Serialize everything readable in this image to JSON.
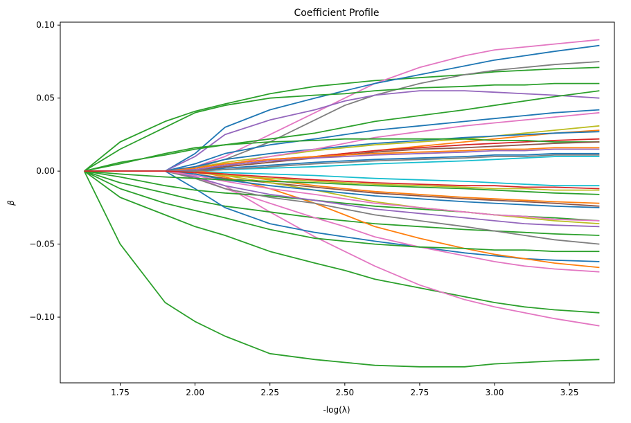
{
  "chart_data": {
    "type": "line",
    "title": "Coefficient Profile",
    "xlabel": "-log(λ)",
    "ylabel": "β",
    "xlim": [
      1.55,
      3.4
    ],
    "ylim": [
      -0.145,
      0.102
    ],
    "xticks": [
      1.75,
      2.0,
      2.25,
      2.5,
      2.75,
      3.0,
      3.25
    ],
    "xtick_labels": [
      "1.75",
      "2.00",
      "2.25",
      "2.50",
      "2.75",
      "3.00",
      "3.25"
    ],
    "yticks": [
      0.1,
      0.05,
      0.0,
      -0.05,
      -0.1
    ],
    "ytick_labels": [
      "0.10",
      "0.05",
      "0.00",
      "−0.05",
      "−0.10"
    ],
    "grid": false,
    "legend": "none",
    "x": [
      1.63,
      1.75,
      1.9,
      2.0,
      2.1,
      2.25,
      2.4,
      2.5,
      2.6,
      2.75,
      2.9,
      3.0,
      3.1,
      3.2,
      3.35
    ],
    "series": [
      {
        "color": "#2ca02c",
        "values": [
          0,
          -0.05,
          -0.09,
          -0.103,
          -0.113,
          -0.125,
          -0.129,
          -0.131,
          -0.133,
          -0.134,
          -0.134,
          -0.132,
          -0.131,
          -0.13,
          -0.129
        ]
      },
      {
        "color": "#2ca02c",
        "values": [
          0,
          -0.018,
          -0.03,
          -0.038,
          -0.044,
          -0.055,
          -0.063,
          -0.068,
          -0.074,
          -0.08,
          -0.086,
          -0.09,
          -0.093,
          -0.095,
          -0.097
        ]
      },
      {
        "color": "#e377c2",
        "values": [
          0,
          0,
          0,
          -0.004,
          -0.01,
          -0.028,
          -0.045,
          -0.055,
          -0.065,
          -0.078,
          -0.088,
          -0.093,
          -0.097,
          -0.101,
          -0.106
        ]
      },
      {
        "color": "#2ca02c",
        "values": [
          0,
          0.02,
          0.034,
          0.041,
          0.046,
          0.053,
          0.058,
          0.06,
          0.062,
          0.064,
          0.066,
          0.068,
          0.069,
          0.07,
          0.071
        ]
      },
      {
        "color": "#e377c2",
        "values": [
          0,
          0,
          0,
          0.003,
          0.01,
          0.025,
          0.04,
          0.05,
          0.06,
          0.071,
          0.079,
          0.083,
          0.085,
          0.087,
          0.09
        ]
      },
      {
        "color": "#1f77b4",
        "values": [
          0,
          0,
          0,
          0.012,
          0.03,
          0.042,
          0.05,
          0.055,
          0.06,
          0.066,
          0.072,
          0.076,
          0.079,
          0.082,
          0.086
        ]
      },
      {
        "color": "#7f7f7f",
        "values": [
          0,
          0,
          0,
          0.002,
          0.008,
          0.02,
          0.035,
          0.045,
          0.052,
          0.06,
          0.066,
          0.069,
          0.071,
          0.073,
          0.075
        ]
      },
      {
        "color": "#2ca02c",
        "values": [
          0,
          0.015,
          0.03,
          0.04,
          0.045,
          0.05,
          0.052,
          0.053,
          0.055,
          0.057,
          0.058,
          0.059,
          0.059,
          0.06,
          0.06
        ]
      },
      {
        "color": "#9467bd",
        "values": [
          0,
          0,
          0,
          0.01,
          0.025,
          0.035,
          0.042,
          0.048,
          0.052,
          0.055,
          0.055,
          0.054,
          0.053,
          0.052,
          0.05
        ]
      },
      {
        "color": "#2ca02c",
        "values": [
          0,
          0.005,
          0.012,
          0.016,
          0.018,
          0.022,
          0.026,
          0.03,
          0.034,
          0.038,
          0.042,
          0.045,
          0.048,
          0.051,
          0.055
        ]
      },
      {
        "color": "#1f77b4",
        "values": [
          0,
          0,
          0,
          0.005,
          0.012,
          0.018,
          0.022,
          0.025,
          0.028,
          0.031,
          0.034,
          0.036,
          0.038,
          0.04,
          0.042
        ]
      },
      {
        "color": "#ff7f0e",
        "values": [
          0,
          0,
          0,
          0,
          0.003,
          0.006,
          0.01,
          0.012,
          0.014,
          0.017,
          0.02,
          0.022,
          0.024,
          0.026,
          0.028
        ]
      },
      {
        "color": "#bcbd22",
        "values": [
          0,
          0,
          0,
          0.002,
          0.006,
          0.01,
          0.014,
          0.016,
          0.018,
          0.02,
          0.022,
          0.024,
          0.026,
          0.028,
          0.031
        ]
      },
      {
        "color": "#17becf",
        "values": [
          0,
          0,
          0,
          0,
          0.001,
          0.002,
          0.003,
          0.004,
          0.005,
          0.006,
          0.007,
          0.008,
          0.009,
          0.01,
          0.01
        ]
      },
      {
        "color": "#17becf",
        "values": [
          0,
          0,
          0,
          0,
          -0.001,
          -0.002,
          -0.003,
          -0.004,
          -0.005,
          -0.006,
          -0.007,
          -0.008,
          -0.009,
          -0.01,
          -0.01
        ]
      },
      {
        "color": "#8c564b",
        "values": [
          0,
          0,
          0,
          -0.002,
          -0.005,
          -0.008,
          -0.011,
          -0.013,
          -0.015,
          -0.017,
          -0.019,
          -0.02,
          -0.021,
          -0.022,
          -0.024
        ]
      },
      {
        "color": "#2ca02c",
        "values": [
          0,
          -0.008,
          -0.015,
          -0.02,
          -0.024,
          -0.028,
          -0.032,
          -0.034,
          -0.036,
          -0.038,
          -0.04,
          -0.041,
          -0.042,
          -0.043,
          -0.044
        ]
      },
      {
        "color": "#1f77b4",
        "values": [
          0,
          0,
          0,
          -0.012,
          -0.025,
          -0.036,
          -0.042,
          -0.045,
          -0.048,
          -0.052,
          -0.056,
          -0.058,
          -0.06,
          -0.061,
          -0.062
        ]
      },
      {
        "color": "#ff7f0e",
        "values": [
          0,
          0,
          0,
          0,
          -0.004,
          -0.012,
          -0.022,
          -0.03,
          -0.038,
          -0.046,
          -0.053,
          -0.057,
          -0.06,
          -0.063,
          -0.066
        ]
      },
      {
        "color": "#e377c2",
        "values": [
          0,
          0,
          0,
          -0.004,
          -0.012,
          -0.022,
          -0.032,
          -0.038,
          -0.045,
          -0.052,
          -0.058,
          -0.062,
          -0.065,
          -0.067,
          -0.069
        ]
      },
      {
        "color": "#2ca02c",
        "values": [
          0,
          -0.012,
          -0.022,
          -0.027,
          -0.032,
          -0.04,
          -0.046,
          -0.048,
          -0.05,
          -0.052,
          -0.053,
          -0.054,
          -0.054,
          -0.055,
          -0.055
        ]
      },
      {
        "color": "#2ca02c",
        "values": [
          0,
          -0.004,
          -0.01,
          -0.013,
          -0.015,
          -0.017,
          -0.02,
          -0.022,
          -0.024,
          -0.026,
          -0.028,
          -0.03,
          -0.031,
          -0.032,
          -0.034
        ]
      },
      {
        "color": "#9467bd",
        "values": [
          0,
          0,
          0,
          -0.004,
          -0.01,
          -0.016,
          -0.02,
          -0.023,
          -0.026,
          -0.029,
          -0.032,
          -0.034,
          -0.036,
          -0.037,
          -0.038
        ]
      },
      {
        "color": "#7f7f7f",
        "values": [
          0,
          0,
          0,
          -0.005,
          -0.012,
          -0.018,
          -0.022,
          -0.026,
          -0.03,
          -0.034,
          -0.038,
          -0.041,
          -0.044,
          -0.047,
          -0.05
        ]
      },
      {
        "color": "#bcbd22",
        "values": [
          0,
          0,
          0,
          0,
          -0.003,
          -0.008,
          -0.013,
          -0.017,
          -0.021,
          -0.025,
          -0.028,
          -0.03,
          -0.032,
          -0.034,
          -0.036
        ]
      },
      {
        "color": "#d62728",
        "values": [
          0,
          0,
          0,
          0.002,
          0.005,
          0.008,
          0.01,
          0.012,
          0.014,
          0.016,
          0.018,
          0.019,
          0.02,
          0.021,
          0.022
        ]
      },
      {
        "color": "#1f77b4",
        "values": [
          0,
          0,
          0,
          0.003,
          0.008,
          0.012,
          0.015,
          0.017,
          0.019,
          0.021,
          0.023,
          0.024,
          0.025,
          0.026,
          0.027
        ]
      },
      {
        "color": "#e377c2",
        "values": [
          0,
          0,
          0,
          0.001,
          0.004,
          0.01,
          0.015,
          0.019,
          0.023,
          0.027,
          0.031,
          0.033,
          0.035,
          0.037,
          0.04
        ]
      },
      {
        "color": "#ff7f0e",
        "values": [
          0,
          0,
          0,
          0,
          -0.002,
          -0.006,
          -0.01,
          -0.012,
          -0.014,
          -0.016,
          -0.018,
          -0.019,
          -0.02,
          -0.021,
          -0.022
        ]
      },
      {
        "color": "#1f77b4",
        "values": [
          0,
          0,
          0,
          -0.002,
          -0.006,
          -0.01,
          -0.013,
          -0.015,
          -0.017,
          -0.019,
          -0.021,
          -0.022,
          -0.023,
          -0.024,
          -0.025
        ]
      },
      {
        "color": "#2ca02c",
        "values": [
          0,
          0.006,
          0.011,
          0.015,
          0.018,
          0.02,
          0.021,
          0.022,
          0.022,
          0.022,
          0.022,
          0.021,
          0.021,
          0.02,
          0.02
        ]
      },
      {
        "color": "#e377c2",
        "values": [
          0,
          0,
          0,
          -0.003,
          -0.007,
          -0.012,
          -0.016,
          -0.019,
          -0.022,
          -0.025,
          -0.028,
          -0.03,
          -0.031,
          -0.033,
          -0.034
        ]
      },
      {
        "color": "#8c564b",
        "values": [
          0,
          0,
          0,
          0.001,
          0.003,
          0.006,
          0.009,
          0.011,
          0.013,
          0.015,
          0.016,
          0.017,
          0.018,
          0.019,
          0.02
        ]
      },
      {
        "color": "#ff7f0e",
        "values": [
          0,
          0,
          0,
          0.002,
          0.005,
          0.008,
          0.01,
          0.011,
          0.012,
          0.013,
          0.014,
          0.015,
          0.015,
          0.016,
          0.016
        ]
      },
      {
        "color": "#1f77b4",
        "values": [
          0,
          0,
          0,
          0,
          0.002,
          0.004,
          0.006,
          0.007,
          0.008,
          0.009,
          0.01,
          0.011,
          0.011,
          0.012,
          0.012
        ]
      },
      {
        "color": "#bcbd22",
        "values": [
          0,
          0,
          0,
          -0.001,
          -0.003,
          -0.005,
          -0.007,
          -0.008,
          -0.009,
          -0.01,
          -0.011,
          -0.012,
          -0.012,
          -0.013,
          -0.013
        ]
      },
      {
        "color": "#9467bd",
        "values": [
          0,
          0,
          0,
          0.001,
          0.004,
          0.007,
          0.009,
          0.01,
          0.011,
          0.012,
          0.013,
          0.014,
          0.014,
          0.015,
          0.015
        ]
      },
      {
        "color": "#2ca02c",
        "values": [
          0,
          -0.002,
          -0.004,
          -0.005,
          -0.006,
          -0.007,
          -0.008,
          -0.009,
          -0.01,
          -0.011,
          -0.012,
          -0.013,
          -0.014,
          -0.015,
          -0.016
        ]
      },
      {
        "color": "#7f7f7f",
        "values": [
          0,
          0,
          0,
          0,
          0.001,
          0.003,
          0.005,
          0.006,
          0.007,
          0.008,
          0.009,
          0.01,
          0.01,
          0.011,
          0.011
        ]
      },
      {
        "color": "#d62728",
        "values": [
          0,
          0,
          0,
          -0.001,
          -0.002,
          -0.004,
          -0.006,
          -0.007,
          -0.008,
          -0.009,
          -0.01,
          -0.01,
          -0.011,
          -0.011,
          -0.012
        ]
      }
    ]
  }
}
